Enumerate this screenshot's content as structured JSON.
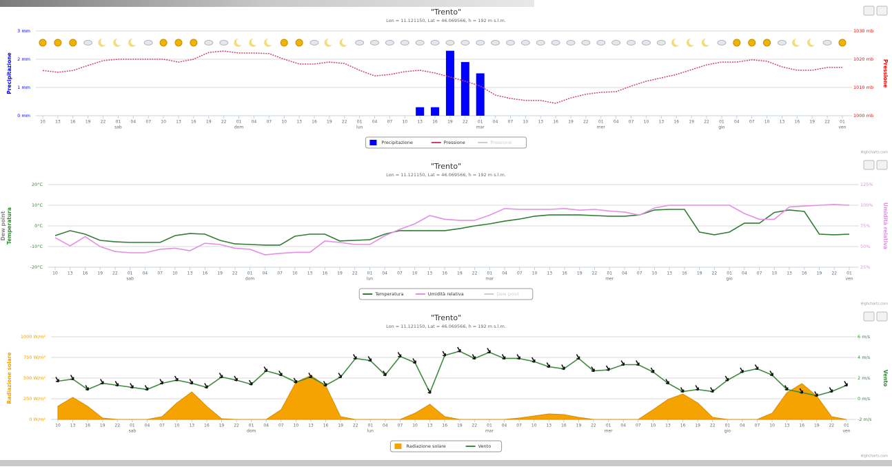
{
  "chart_data": [
    {
      "type": "combo",
      "title": "\"Trento\"",
      "subtitle": "Lon = 11.121150, Lat = 46.069566, h = 192 m s.l.m.",
      "categories": [
        "10",
        "13",
        "16",
        "19",
        "22",
        "01",
        "04",
        "07",
        "10",
        "13",
        "16",
        "19",
        "22",
        "01",
        "04",
        "07",
        "10",
        "13",
        "16",
        "19",
        "22",
        "01",
        "04",
        "07",
        "10",
        "13",
        "16",
        "19",
        "22",
        "01",
        "04",
        "07",
        "10",
        "13",
        "16",
        "19",
        "22",
        "01",
        "04",
        "07",
        "10",
        "13",
        "16",
        "19",
        "22",
        "01",
        "04",
        "07",
        "10",
        "13",
        "16",
        "19",
        "22",
        "01"
      ],
      "day_labels": [
        null,
        null,
        null,
        null,
        null,
        "sab",
        null,
        null,
        null,
        null,
        null,
        null,
        null,
        "dom",
        null,
        null,
        null,
        null,
        null,
        null,
        null,
        "lun",
        null,
        null,
        null,
        null,
        null,
        null,
        null,
        "mar",
        null,
        null,
        null,
        null,
        null,
        null,
        null,
        "mer",
        null,
        null,
        null,
        null,
        null,
        null,
        null,
        "gio",
        null,
        null,
        null,
        null,
        null,
        null,
        null,
        "ven"
      ],
      "y_label": "Precipitazione",
      "y_color": "#0000ff",
      "ylim": [
        0,
        3
      ],
      "yticks": [
        {
          "value": 0,
          "label": "0 mm"
        },
        {
          "value": 1,
          "label": "1 mm"
        },
        {
          "value": 2,
          "label": "2 mm"
        },
        {
          "value": 3,
          "label": "3 mm"
        }
      ],
      "y2_label": "Pressione",
      "y2_color": "#ff0000",
      "y2lim": [
        1000,
        1030
      ],
      "y2ticks": [
        {
          "value": 1000,
          "label": "1000 mb"
        },
        {
          "value": 1010,
          "label": "1010 mb"
        },
        {
          "value": 1020,
          "label": "1020 mb"
        },
        {
          "value": 1030,
          "label": "1030 mb"
        }
      ],
      "grid": true,
      "legend": "bottom",
      "series": [
        {
          "name": "Precipitazione",
          "type": "bar",
          "color": "#0000ff",
          "values": [
            0,
            0,
            0,
            0,
            0,
            0,
            0,
            0,
            0,
            0,
            0,
            0,
            0,
            0,
            0,
            0,
            0,
            0,
            0,
            0,
            0,
            0,
            0,
            0,
            0,
            0.3,
            0.3,
            2.3,
            1.9,
            1.5,
            0,
            0,
            0,
            0,
            0,
            0,
            0,
            0,
            0,
            0,
            0,
            0,
            0,
            0,
            0,
            0,
            0,
            0,
            0,
            0,
            0,
            0,
            0,
            0
          ]
        },
        {
          "name": "Pressione",
          "type": "line",
          "dash": true,
          "axis": "y2",
          "color": "#d0406a",
          "values": [
            1016,
            1015.4,
            1016,
            1017.8,
            1019.5,
            1020,
            1020,
            1020,
            1020,
            1019,
            1020,
            1022.4,
            1022.9,
            1022.2,
            1022.2,
            1022,
            1020,
            1018.3,
            1018.3,
            1019,
            1018.5,
            1016.1,
            1014.1,
            1014.6,
            1015.6,
            1016.1,
            1015.1,
            1013.7,
            1012.2,
            1010.5,
            1007.3,
            1006.1,
            1005.4,
            1005.4,
            1004.4,
            1006.3,
            1007.6,
            1008.3,
            1008.5,
            1010.5,
            1012.2,
            1013.4,
            1014.6,
            1016.3,
            1018,
            1019,
            1019,
            1019.8,
            1019.3,
            1017.3,
            1016.1,
            1016.1,
            1017.1,
            1017.1
          ]
        }
      ],
      "hidden_legend_items": [
        "Pressione"
      ],
      "credits": "Highcharts.com"
    },
    {
      "type": "combo",
      "title": "\"Trento\"",
      "subtitle": "Lon = 11.121150, Lat = 46.069566, h = 192 m s.l.m.",
      "categories": [
        "10",
        "13",
        "16",
        "19",
        "22",
        "01",
        "04",
        "07",
        "10",
        "13",
        "16",
        "19",
        "22",
        "01",
        "04",
        "07",
        "10",
        "13",
        "16",
        "19",
        "22",
        "01",
        "04",
        "07",
        "10",
        "13",
        "16",
        "19",
        "22",
        "01",
        "04",
        "07",
        "10",
        "13",
        "16",
        "19",
        "22",
        "01",
        "04",
        "07",
        "10",
        "13",
        "16",
        "19",
        "22",
        "01",
        "04",
        "07",
        "10",
        "13",
        "16",
        "19",
        "22",
        "01"
      ],
      "day_labels": [
        null,
        null,
        null,
        null,
        null,
        "sab",
        null,
        null,
        null,
        null,
        null,
        null,
        null,
        "dom",
        null,
        null,
        null,
        null,
        null,
        null,
        null,
        "lun",
        null,
        null,
        null,
        null,
        null,
        null,
        null,
        "mar",
        null,
        null,
        null,
        null,
        null,
        null,
        null,
        "mer",
        null,
        null,
        null,
        null,
        null,
        null,
        null,
        "gio",
        null,
        null,
        null,
        null,
        null,
        null,
        null,
        "ven"
      ],
      "y_label": "Temperatura",
      "y_color": "#2e8b2e",
      "ylim": [
        -20,
        20
      ],
      "yticks": [
        {
          "value": -20,
          "label": "-20°C"
        },
        {
          "value": -10,
          "label": "-10°C"
        },
        {
          "value": 0,
          "label": "0°C"
        },
        {
          "value": 10,
          "label": "10°C"
        },
        {
          "value": 20,
          "label": "20°C"
        }
      ],
      "y2_label": "Umidità relativa",
      "y2_color": "#e58ee5",
      "y2lim": [
        25,
        125
      ],
      "y2ticks": [
        {
          "value": 25,
          "label": "25%"
        },
        {
          "value": 50,
          "label": "50%"
        },
        {
          "value": 75,
          "label": "75%"
        },
        {
          "value": 100,
          "label": "100%"
        },
        {
          "value": 125,
          "label": "125%"
        }
      ],
      "grid": true,
      "legend": "bottom",
      "series": [
        {
          "name": "Temperatura",
          "type": "line",
          "color": "#2e7d32",
          "values": [
            -4.7,
            -2.3,
            -4,
            -7,
            -7.7,
            -8,
            -8,
            -8,
            -4.7,
            -3.7,
            -4,
            -7,
            -8.7,
            -9,
            -9.3,
            -9.3,
            -5,
            -4,
            -4,
            -7.3,
            -7,
            -6.7,
            -4,
            -2.3,
            -2.3,
            -2.3,
            -2.3,
            -1.3,
            0,
            1,
            2.3,
            3.3,
            4.7,
            5.3,
            5.3,
            5.3,
            5,
            4.7,
            4.7,
            5.3,
            7.7,
            8,
            8,
            -3,
            -4.3,
            -3,
            1.3,
            1.3,
            6.5,
            7.7,
            7,
            -4,
            -4.3,
            -4
          ]
        },
        {
          "name": "Umidità relativa",
          "type": "line",
          "axis": "y2",
          "color": "#e58ee5",
          "values": [
            60.8,
            50.8,
            62,
            50,
            44,
            42.5,
            42.5,
            46.7,
            48,
            45,
            54,
            52.5,
            48,
            46.7,
            40,
            41.7,
            43,
            43,
            56.7,
            55,
            52.5,
            52.5,
            63,
            70.8,
            77.5,
            87.5,
            83,
            81.7,
            81.7,
            88,
            96,
            95,
            95,
            95,
            96,
            94,
            95,
            93,
            91.7,
            88,
            96.7,
            100,
            100,
            100,
            100,
            100,
            90,
            83,
            83,
            98,
            99,
            100,
            101,
            100
          ]
        }
      ],
      "hidden_legend_items": [
        "Dew point"
      ],
      "credits": "Highcharts.com"
    },
    {
      "type": "combo",
      "title": "\"Trento\"",
      "subtitle": "Lon = 11.121150, Lat = 46.069566, h = 192 m s.l.m.",
      "categories": [
        "10",
        "13",
        "16",
        "19",
        "22",
        "01",
        "04",
        "07",
        "10",
        "13",
        "16",
        "19",
        "22",
        "01",
        "04",
        "07",
        "10",
        "13",
        "16",
        "19",
        "22",
        "01",
        "04",
        "07",
        "10",
        "13",
        "16",
        "19",
        "22",
        "01",
        "04",
        "07",
        "10",
        "13",
        "16",
        "19",
        "22",
        "01",
        "04",
        "07",
        "10",
        "13",
        "16",
        "19",
        "22",
        "01",
        "04",
        "07",
        "10",
        "13",
        "16",
        "19",
        "22",
        "01"
      ],
      "day_labels": [
        null,
        null,
        null,
        null,
        null,
        "sab",
        null,
        null,
        null,
        null,
        null,
        null,
        null,
        "dom",
        null,
        null,
        null,
        null,
        null,
        null,
        null,
        "lun",
        null,
        null,
        null,
        null,
        null,
        null,
        null,
        "mar",
        null,
        null,
        null,
        null,
        null,
        null,
        null,
        "mer",
        null,
        null,
        null,
        null,
        null,
        null,
        null,
        "gio",
        null,
        null,
        null,
        null,
        null,
        null,
        null,
        "ven"
      ],
      "y_label": "Radiazione solare",
      "y_color": "#f0a000",
      "ylim": [
        0,
        1000
      ],
      "yticks": [
        {
          "value": 0,
          "label": "0 W/m²"
        },
        {
          "value": 250,
          "label": "250 W/m²"
        },
        {
          "value": 500,
          "label": "500 W/m²"
        },
        {
          "value": 750,
          "label": "750 W/m²"
        },
        {
          "value": 1000,
          "label": "1000 W/m²"
        }
      ],
      "y2_label": "Vento",
      "y2_color": "#2e8b2e",
      "y2lim": [
        -2,
        6
      ],
      "y2ticks": [
        {
          "value": -2,
          "label": "-2 m/s"
        },
        {
          "value": 0,
          "label": "0 m/s"
        },
        {
          "value": 2,
          "label": "2 m/s"
        },
        {
          "value": 4,
          "label": "4 m/s"
        },
        {
          "value": 6,
          "label": "6 m/s"
        }
      ],
      "grid": true,
      "legend": "bottom",
      "series": [
        {
          "name": "Radiazione solare",
          "type": "area",
          "color": "#f5a300",
          "values": [
            160,
            267,
            158,
            17,
            0,
            0,
            0,
            33,
            200,
            333,
            158,
            8,
            0,
            0,
            0,
            117,
            450,
            533,
            408,
            33,
            0,
            0,
            0,
            0,
            75,
            183,
            33,
            0,
            0,
            0,
            0,
            17,
            42,
            67,
            58,
            25,
            0,
            0,
            0,
            0,
            117,
            242,
            308,
            200,
            25,
            0,
            0,
            0,
            75,
            325,
            433,
            283,
            33,
            0
          ]
        },
        {
          "name": "Vento",
          "type": "line",
          "markers": "arrow",
          "axis": "y2",
          "color": "#3c8c3c",
          "values": [
            1.7,
            1.9,
            0.9,
            1.5,
            1.3,
            1.1,
            0.9,
            1.5,
            1.8,
            1.5,
            1.1,
            2.1,
            1.8,
            1.4,
            2.7,
            2.3,
            1.6,
            2.1,
            1.3,
            2.1,
            3.9,
            3.7,
            2.3,
            4.1,
            3.5,
            0.6,
            4.2,
            4.6,
            3.9,
            4.5,
            3.9,
            3.9,
            3.6,
            3.1,
            2.9,
            3.9,
            2.7,
            2.8,
            3.3,
            3.3,
            2.6,
            1.5,
            0.7,
            0.9,
            0.7,
            1.8,
            2.6,
            2.9,
            2.3,
            0.9,
            0.6,
            0.3,
            0.7,
            1.3
          ]
        }
      ],
      "hidden_legend_items": [],
      "credits": "Highcharts.com"
    }
  ]
}
